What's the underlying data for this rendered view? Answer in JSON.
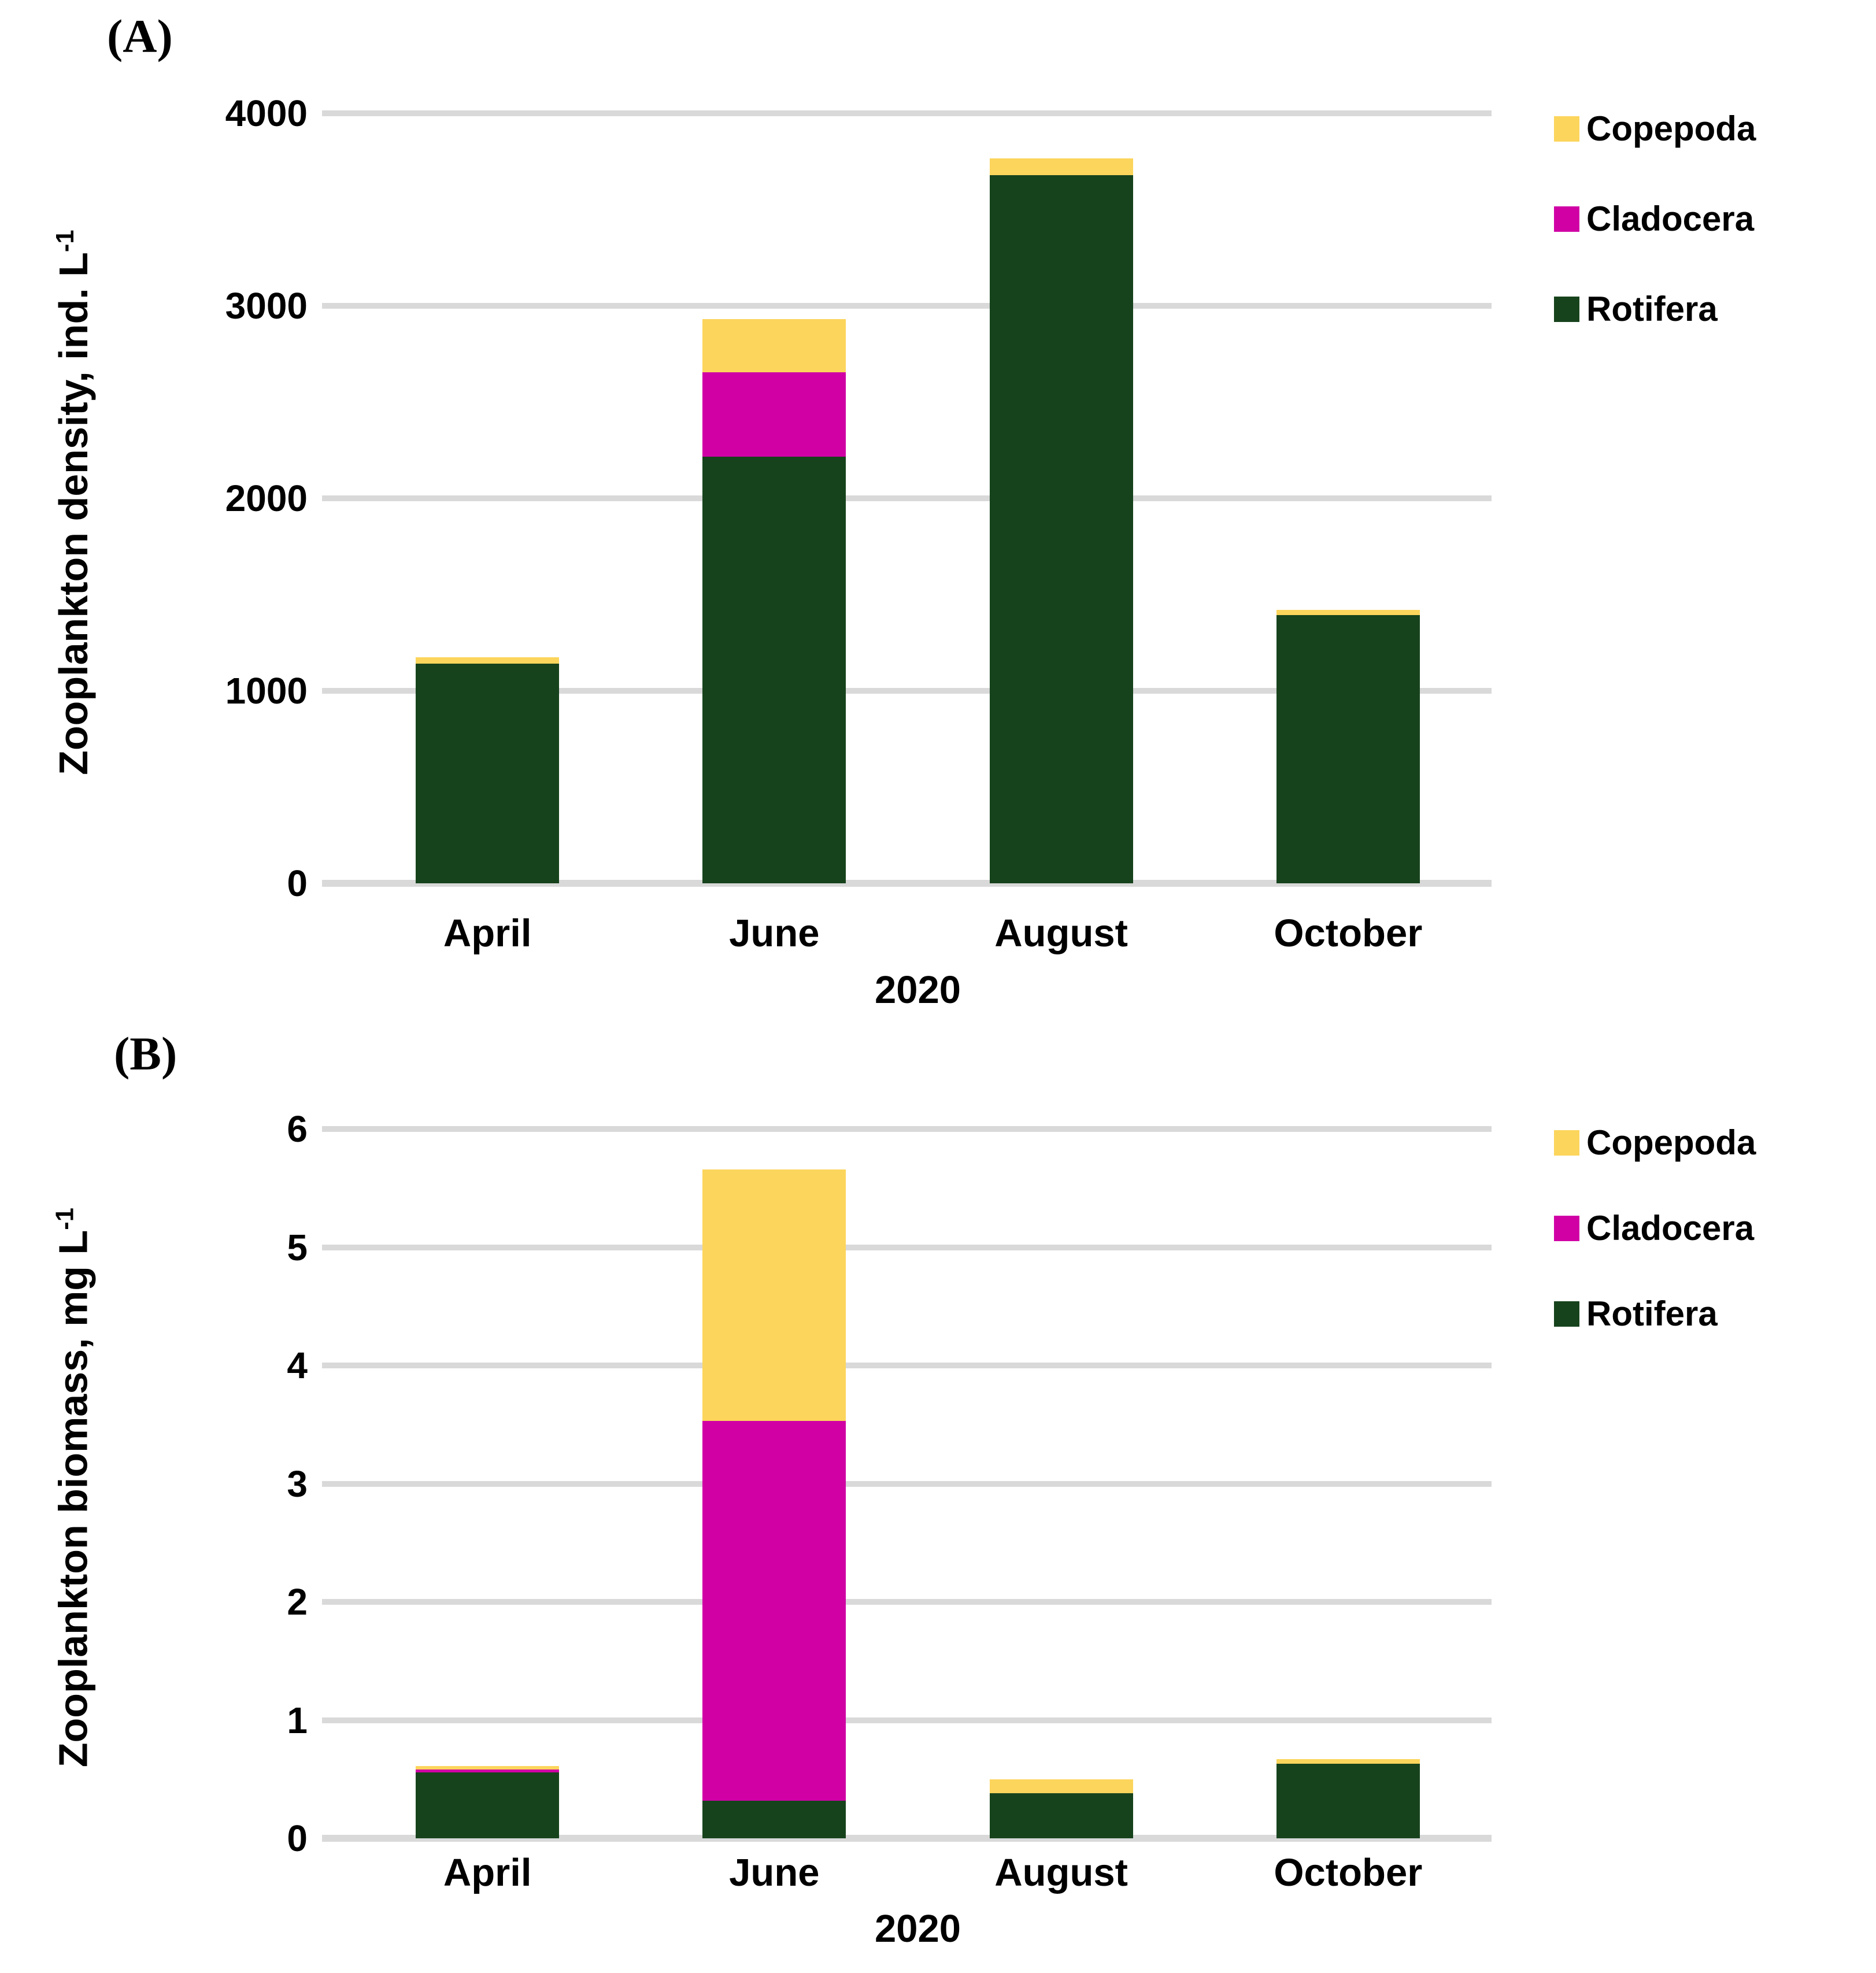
{
  "figure": {
    "background": "#FFFFFF",
    "grid_color": "#D9D9D9",
    "axis_color": "#D9D9D9"
  },
  "chart_data": [
    {
      "type": "bar",
      "stacked": true,
      "panel_label": "(A)",
      "ylabel_main": "Zooplankton density, ind. L",
      "ylabel_sup": "-1",
      "ylabel_full": "Zooplankton density, ind. L⁻¹",
      "x_title": "2020",
      "categories": [
        "April",
        "June",
        "August",
        "October"
      ],
      "ylim": [
        0,
        4000
      ],
      "yticks": [
        0,
        1000,
        2000,
        3000,
        4000
      ],
      "grid": true,
      "legend_position": "right-top",
      "legend_order": [
        "Copepoda",
        "Cladocera",
        "Rotifera"
      ],
      "series": [
        {
          "name": "Rotifera",
          "color": "#17431C",
          "values": [
            1140,
            2215,
            3680,
            1395
          ]
        },
        {
          "name": "Cladocera",
          "color": "#D000A5",
          "values": [
            0,
            440,
            0,
            0
          ]
        },
        {
          "name": "Copepoda",
          "color": "#FCD55C",
          "values": [
            35,
            275,
            85,
            25
          ]
        }
      ]
    },
    {
      "type": "bar",
      "stacked": true,
      "panel_label": "(B)",
      "ylabel_main": "Zooplankton biomass, mg L",
      "ylabel_sup": "-1",
      "ylabel_full": "Zooplankton biomass, mg L⁻¹",
      "x_title": "2020",
      "categories": [
        "April",
        "June",
        "August",
        "October"
      ],
      "ylim": [
        0,
        6
      ],
      "yticks": [
        0,
        1,
        2,
        3,
        4,
        5,
        6
      ],
      "grid": true,
      "legend_position": "right-top",
      "legend_order": [
        "Copepoda",
        "Cladocera",
        "Rotifera"
      ],
      "series": [
        {
          "name": "Rotifera",
          "color": "#17431C",
          "values": [
            0.56,
            0.32,
            0.38,
            0.63
          ]
        },
        {
          "name": "Cladocera",
          "color": "#D000A5",
          "values": [
            0.02,
            3.21,
            0,
            0
          ]
        },
        {
          "name": "Copepoda",
          "color": "#FCD55C",
          "values": [
            0.03,
            2.13,
            0.12,
            0.04
          ]
        }
      ]
    }
  ]
}
